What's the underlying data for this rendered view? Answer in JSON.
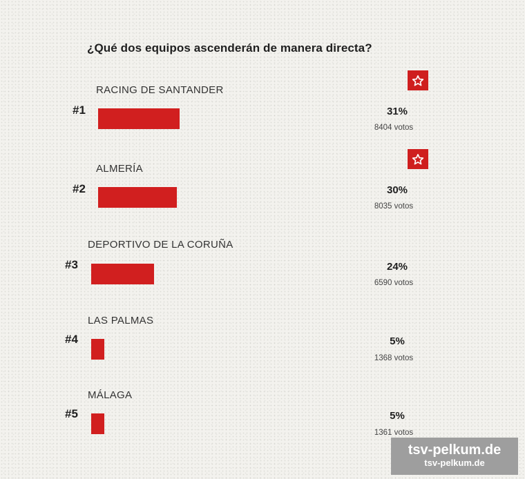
{
  "poll": {
    "question": "¿Qué dos equipos ascenderán de manera directa?",
    "bar_color": "#d11f1f",
    "options": [
      {
        "rank": "#1",
        "name": "RACING DE SANTANDER",
        "percent": "31%",
        "share": 0.31,
        "votes": "8404 votos",
        "starred": true,
        "star_icon": "star-icon"
      },
      {
        "rank": "#2",
        "name": "ALMERÍA",
        "percent": "30%",
        "share": 0.3,
        "votes": "8035 votos",
        "starred": true,
        "star_icon": "star-icon"
      },
      {
        "rank": "#3",
        "name": "DEPORTIVO DE LA CORUÑA",
        "percent": "24%",
        "share": 0.24,
        "votes": "6590 votos",
        "starred": false
      },
      {
        "rank": "#4",
        "name": "LAS PALMAS",
        "percent": "5%",
        "share": 0.05,
        "votes": "1368 votos",
        "starred": false
      },
      {
        "rank": "#5",
        "name": "MÁLAGA",
        "percent": "5%",
        "share": 0.05,
        "votes": "1361 votos",
        "starred": false
      }
    ]
  },
  "watermark": {
    "line1": "tsv-pelkum.de",
    "line2": "tsv-pelkum.de"
  }
}
